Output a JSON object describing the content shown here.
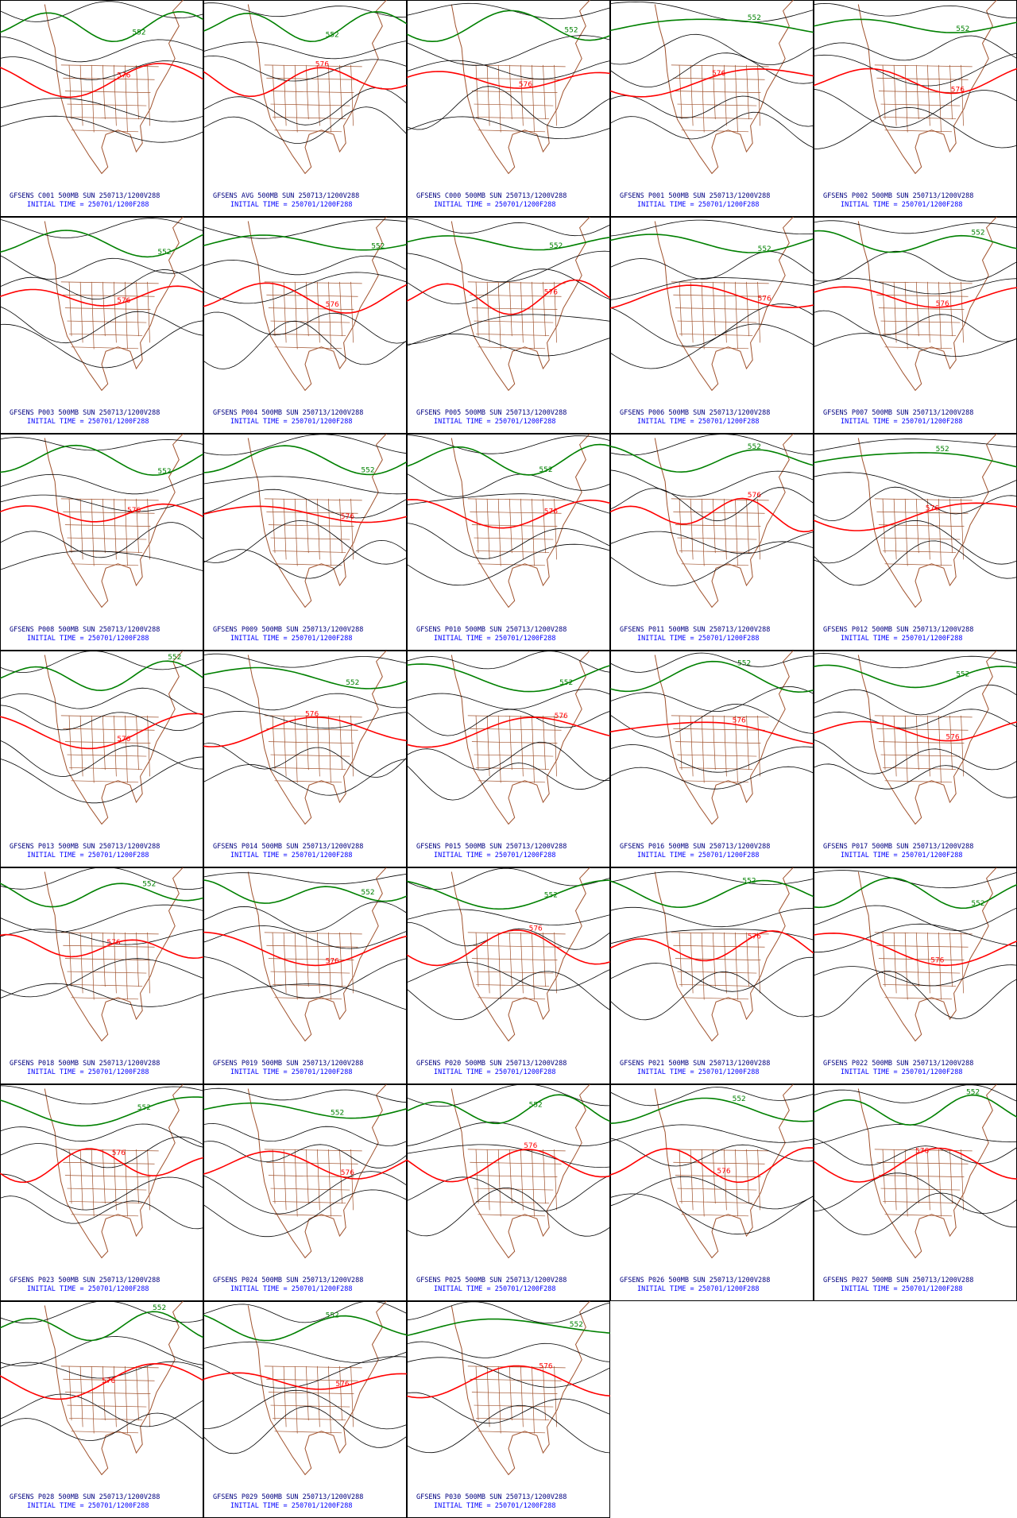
{
  "panels": [
    {
      "label": "GFSENS C001 500MB SUN 250713/1200V288",
      "initial": "INITIAL TIME = 250701/1200F288",
      "contours": [
        "576",
        "552"
      ]
    },
    {
      "label": "GFSENS AVG 500MB SUN 250713/1200V288",
      "initial": "INITIAL TIME = 250701/1200F288",
      "contours": [
        "576",
        "552"
      ]
    },
    {
      "label": "GFSENS C000 500MB SUN 250713/1200V288",
      "initial": "INITIAL TIME = 250701/1200F288",
      "contours": [
        "576",
        "552"
      ]
    },
    {
      "label": "GFSENS P001 500MB SUN 250713/1200V288",
      "initial": "INITIAL TIME = 250701/1200F288",
      "contours": [
        "576",
        "552"
      ]
    },
    {
      "label": "GFSENS P002 500MB SUN 250713/1200V288",
      "initial": "INITIAL TIME = 250701/1200F288",
      "contours": [
        "576",
        "552"
      ]
    },
    {
      "label": "GFSENS P003 500MB SUN 250713/1200V288",
      "initial": "INITIAL TIME = 250701/1200F288",
      "contours": [
        "576",
        "552"
      ]
    },
    {
      "label": "GFSENS P004 500MB SUN 250713/1200V288",
      "initial": "INITIAL TIME = 250701/1200F288",
      "contours": [
        "576",
        "552"
      ]
    },
    {
      "label": "GFSENS P005 500MB SUN 250713/1200V288",
      "initial": "INITIAL TIME = 250701/1200F288",
      "contours": [
        "576",
        "552"
      ]
    },
    {
      "label": "GFSENS P006 500MB SUN 250713/1200V288",
      "initial": "INITIAL TIME = 250701/1200F288",
      "contours": [
        "576",
        "552"
      ]
    },
    {
      "label": "GFSENS P007 500MB SUN 250713/1200V288",
      "initial": "INITIAL TIME = 250701/1200F288",
      "contours": [
        "576",
        "552"
      ]
    },
    {
      "label": "GFSENS P008 500MB SUN 250713/1200V288",
      "initial": "INITIAL TIME = 250701/1200F288",
      "contours": [
        "576",
        "552"
      ]
    },
    {
      "label": "GFSENS P009 500MB SUN 250713/1200V288",
      "initial": "INITIAL TIME = 250701/1200F288",
      "contours": [
        "576",
        "552"
      ]
    },
    {
      "label": "GFSENS P010 500MB SUN 250713/1200V288",
      "initial": "INITIAL TIME = 250701/1200F288",
      "contours": [
        "576",
        "552"
      ]
    },
    {
      "label": "GFSENS P011 500MB SUN 250713/1200V288",
      "initial": "INITIAL TIME = 250701/1200F288",
      "contours": [
        "576",
        "552"
      ]
    },
    {
      "label": "GFSENS P012 500MB SUN 250713/1200V288",
      "initial": "INITIAL TIME = 250701/1200F288",
      "contours": [
        "576",
        "552"
      ]
    },
    {
      "label": "GFSENS P013 500MB SUN 250713/1200V288",
      "initial": "INITIAL TIME = 250701/1200F288",
      "contours": [
        "576",
        "552"
      ]
    },
    {
      "label": "GFSENS P014 500MB SUN 250713/1200V288",
      "initial": "INITIAL TIME = 250701/1200F288",
      "contours": [
        "576",
        "552"
      ]
    },
    {
      "label": "GFSENS P015 500MB SUN 250713/1200V288",
      "initial": "INITIAL TIME = 250701/1200F288",
      "contours": [
        "576",
        "552"
      ]
    },
    {
      "label": "GFSENS P016 500MB SUN 250713/1200V288",
      "initial": "INITIAL TIME = 250701/1200F288",
      "contours": [
        "576",
        "552"
      ]
    },
    {
      "label": "GFSENS P017 500MB SUN 250713/1200V288",
      "initial": "INITIAL TIME = 250701/1200F288",
      "contours": [
        "576",
        "552"
      ]
    },
    {
      "label": "GFSENS P018 500MB SUN 250713/1200V288",
      "initial": "INITIAL TIME = 250701/1200F288",
      "contours": [
        "576",
        "552"
      ]
    },
    {
      "label": "GFSENS P019 500MB SUN 250713/1200V288",
      "initial": "INITIAL TIME = 250701/1200F288",
      "contours": [
        "576",
        "552"
      ]
    },
    {
      "label": "GFSENS P020 500MB SUN 250713/1200V288",
      "initial": "INITIAL TIME = 250701/1200F288",
      "contours": [
        "576",
        "552"
      ]
    },
    {
      "label": "GFSENS P021 500MB SUN 250713/1200V288",
      "initial": "INITIAL TIME = 250701/1200F288",
      "contours": [
        "576",
        "552"
      ]
    },
    {
      "label": "GFSENS P022 500MB SUN 250713/1200V288",
      "initial": "INITIAL TIME = 250701/1200F288",
      "contours": [
        "576",
        "552"
      ]
    },
    {
      "label": "GFSENS P023 500MB SUN 250713/1200V288",
      "initial": "INITIAL TIME = 250701/1200F288",
      "contours": [
        "576",
        "552"
      ]
    },
    {
      "label": "GFSENS P024 500MB SUN 250713/1200V288",
      "initial": "INITIAL TIME = 250701/1200F288",
      "contours": [
        "576",
        "552"
      ]
    },
    {
      "label": "GFSENS P025 500MB SUN 250713/1200V288",
      "initial": "INITIAL TIME = 250701/1200F288",
      "contours": [
        "576",
        "552"
      ]
    },
    {
      "label": "GFSENS P026 500MB SUN 250713/1200V288",
      "initial": "INITIAL TIME = 250701/1200F288",
      "contours": [
        "576",
        "552"
      ]
    },
    {
      "label": "GFSENS P027 500MB SUN 250713/1200V288",
      "initial": "INITIAL TIME = 250701/1200F288",
      "contours": [
        "576",
        "552"
      ]
    },
    {
      "label": "GFSENS P028 500MB SUN 250713/1200V288",
      "initial": "INITIAL TIME = 250701/1200F288",
      "contours": [
        "576",
        "552"
      ]
    },
    {
      "label": "GFSENS P029 500MB SUN 250713/1200V288",
      "initial": "INITIAL TIME = 250701/1200F288",
      "contours": [
        "576",
        "552"
      ]
    },
    {
      "label": "GFSENS P030 500MB SUN 250713/1200V288",
      "initial": "INITIAL TIME = 250701/1200F288",
      "contours": [
        "576",
        "552"
      ]
    }
  ]
}
